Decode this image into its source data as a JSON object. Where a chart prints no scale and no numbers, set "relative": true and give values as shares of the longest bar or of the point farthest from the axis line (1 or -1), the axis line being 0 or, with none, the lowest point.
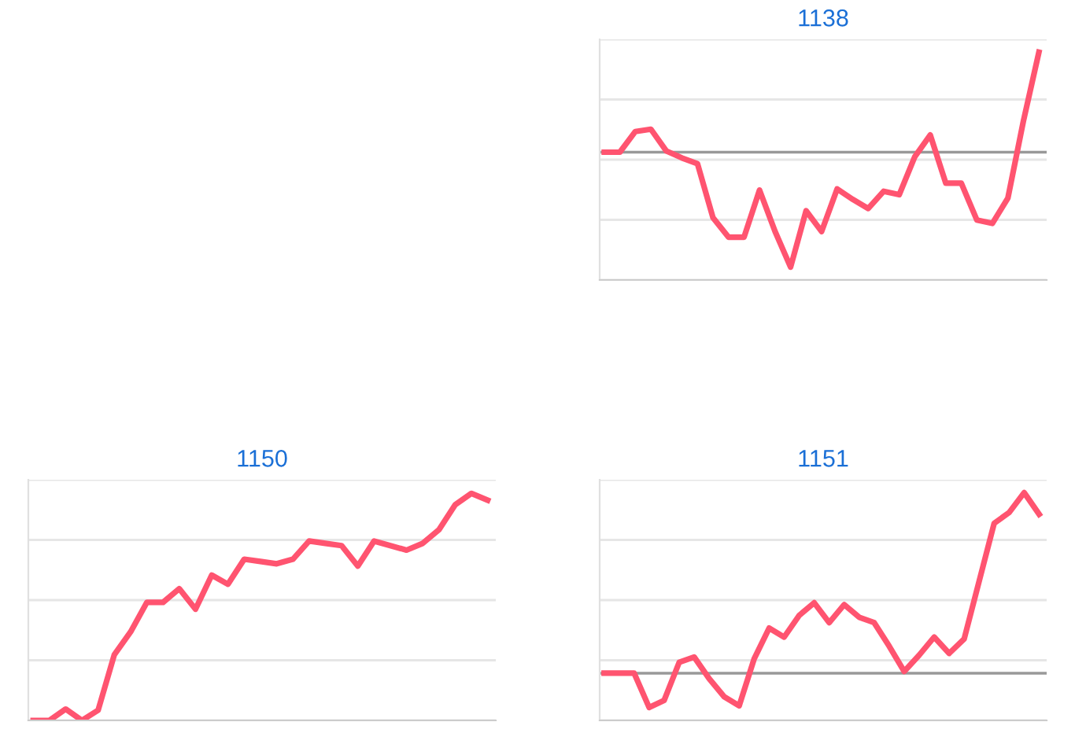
{
  "chart_data": [
    {
      "type": "line",
      "title": "1138",
      "relative": true,
      "grid": "y",
      "legend": false,
      "marker": "none",
      "line_style": "solid",
      "tick_labels": false,
      "categories": [
        null,
        null,
        null,
        null,
        null,
        null,
        null,
        null,
        null,
        null,
        null,
        null,
        null,
        null,
        null,
        null,
        null,
        null,
        null,
        null,
        null,
        null,
        null,
        null,
        null,
        null,
        null,
        null,
        null
      ],
      "series": [
        {
          "color": "#ff5470",
          "values": [
            0,
            0,
            0.18,
            0.2,
            0.01,
            -0.05,
            -0.1,
            -0.57,
            -0.74,
            -0.74,
            -0.33,
            -0.69,
            -1,
            -0.51,
            -0.69,
            -0.32,
            -0.41,
            -0.49,
            -0.34,
            -0.37,
            -0.04,
            0.15,
            -0.27,
            -0.27,
            -0.59,
            -0.62,
            -0.4,
            0.27,
            0.87
          ]
        }
      ]
    },
    {
      "type": "line",
      "title": "1150",
      "relative": true,
      "grid": "y",
      "legend": false,
      "marker": "none",
      "line_style": "solid",
      "tick_labels": false,
      "categories": [
        null,
        null,
        null,
        null,
        null,
        null,
        null,
        null,
        null,
        null,
        null,
        null,
        null,
        null,
        null,
        null,
        null,
        null,
        null,
        null,
        null,
        null,
        null,
        null,
        null,
        null,
        null,
        null,
        null
      ],
      "series": [
        {
          "color": "#ff5470",
          "values": [
            0,
            0,
            0.05,
            0,
            0.045,
            0.29,
            0.39,
            0.52,
            0.52,
            0.58,
            0.49,
            0.64,
            0.6,
            0.71,
            0.7,
            0.69,
            0.71,
            0.79,
            0.78,
            0.77,
            0.68,
            0.79,
            0.77,
            0.75,
            0.78,
            0.84,
            0.95,
            1,
            0.97
          ]
        }
      ]
    },
    {
      "type": "line",
      "title": "1151",
      "relative": true,
      "grid": "y",
      "legend": false,
      "marker": "none",
      "line_style": "solid",
      "tick_labels": false,
      "categories": [
        null,
        null,
        null,
        null,
        null,
        null,
        null,
        null,
        null,
        null,
        null,
        null,
        null,
        null,
        null,
        null,
        null,
        null,
        null,
        null,
        null,
        null,
        null,
        null,
        null,
        null,
        null,
        null,
        null,
        null
      ],
      "series": [
        {
          "color": "#ff5470",
          "values": [
            0,
            0,
            0,
            -0.19,
            -0.15,
            0.06,
            0.09,
            -0.03,
            -0.13,
            -0.18,
            0.08,
            0.25,
            0.2,
            0.32,
            0.39,
            0.28,
            0.38,
            0.31,
            0.28,
            0.15,
            0.01,
            0.1,
            0.2,
            0.11,
            0.19,
            0.51,
            0.83,
            0.89,
            1,
            0.88
          ]
        }
      ]
    }
  ]
}
